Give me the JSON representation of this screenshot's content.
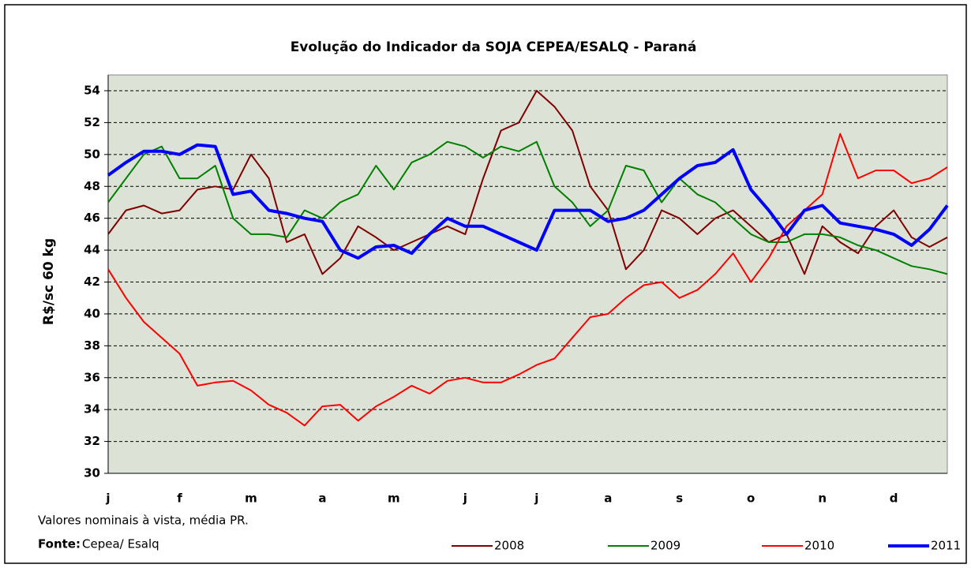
{
  "chart_data": {
    "type": "line",
    "title": "Evolução do Indicador da SOJA CEPEA/ESALQ - Paraná",
    "y_label": "R$/sc 60 kg",
    "note": "Valores nominais à vista, média PR.",
    "source_label": "Fonte:",
    "source": "Cepea/ Esalq",
    "categories": [
      "j",
      null,
      null,
      null,
      "f",
      null,
      null,
      null,
      "m",
      null,
      null,
      null,
      "a",
      null,
      null,
      null,
      "m",
      null,
      null,
      null,
      "j",
      null,
      null,
      null,
      "j",
      null,
      null,
      null,
      "a",
      null,
      null,
      null,
      "s",
      null,
      null,
      null,
      "o",
      null,
      null,
      null,
      "n",
      null,
      null,
      null,
      "d",
      null,
      null,
      null
    ],
    "ylim": [
      30,
      54
    ],
    "yticks": [
      30,
      32,
      34,
      36,
      38,
      40,
      42,
      44,
      46,
      48,
      50,
      52,
      54
    ],
    "grid": true,
    "series": [
      {
        "name": "2008",
        "color": "#800000",
        "values": [
          45,
          46.5,
          46.8,
          46.3,
          46.5,
          47.8,
          48,
          47.8,
          50,
          48.5,
          44.5,
          45,
          42.5,
          43.5,
          45.5,
          44.8,
          44,
          44.5,
          45,
          45.5,
          45,
          48.5,
          51.5,
          52,
          54,
          53,
          51.5,
          48,
          46.5,
          42.8,
          44,
          46.5,
          46,
          45,
          46,
          46.5,
          45.5,
          44.5,
          45,
          42.5,
          45.5,
          44.5,
          43.8,
          45.5,
          46.5,
          44.8,
          44.2,
          44.8
        ]
      },
      {
        "name": "2009",
        "color": "#008000",
        "values": [
          47,
          48.5,
          50,
          50.5,
          48.5,
          48.5,
          49.3,
          46,
          45,
          45,
          44.8,
          46.5,
          46,
          47,
          47.5,
          49.3,
          47.8,
          49.5,
          50,
          50.8,
          50.5,
          49.8,
          50.5,
          50.2,
          50.8,
          48,
          47,
          45.5,
          46.5,
          49.3,
          49,
          47,
          48.5,
          47.5,
          47,
          46,
          45,
          44.5,
          44.5,
          45,
          45,
          44.8,
          44.3,
          44,
          43.5,
          43,
          42.8,
          42.5
        ]
      },
      {
        "name": "2010",
        "color": "#ff0000",
        "values": [
          42.8,
          41,
          39.5,
          38.5,
          37.5,
          35.5,
          35.7,
          35.8,
          35.2,
          34.3,
          33.8,
          33,
          34.2,
          34.3,
          33.3,
          34.2,
          34.8,
          35.5,
          35,
          35.8,
          36,
          35.7,
          35.7,
          36.2,
          36.8,
          37.2,
          38.5,
          39.8,
          40,
          41,
          41.8,
          42,
          41,
          41.5,
          42.5,
          43.8,
          42,
          43.5,
          45.5,
          46.5,
          47.5,
          51.3,
          48.5,
          49,
          49,
          48.2,
          48.5,
          49.2
        ]
      },
      {
        "name": "2011",
        "color": "#0000ff",
        "values": [
          48.7,
          49.5,
          50.2,
          50.2,
          50,
          50.6,
          50.5,
          47.5,
          47.7,
          46.5,
          46.3,
          46,
          45.8,
          44,
          43.5,
          44.2,
          44.3,
          43.8,
          45,
          46,
          45.5,
          45.5,
          45,
          44.5,
          44,
          46.5,
          46.5,
          46.5,
          45.8,
          46,
          46.5,
          47.5,
          48.5,
          49.3,
          49.5,
          50.3,
          47.8,
          46.5,
          45,
          46.5,
          46.8,
          45.7,
          45.5,
          45.3,
          45,
          44.3,
          45.3,
          46.8
        ]
      }
    ]
  }
}
